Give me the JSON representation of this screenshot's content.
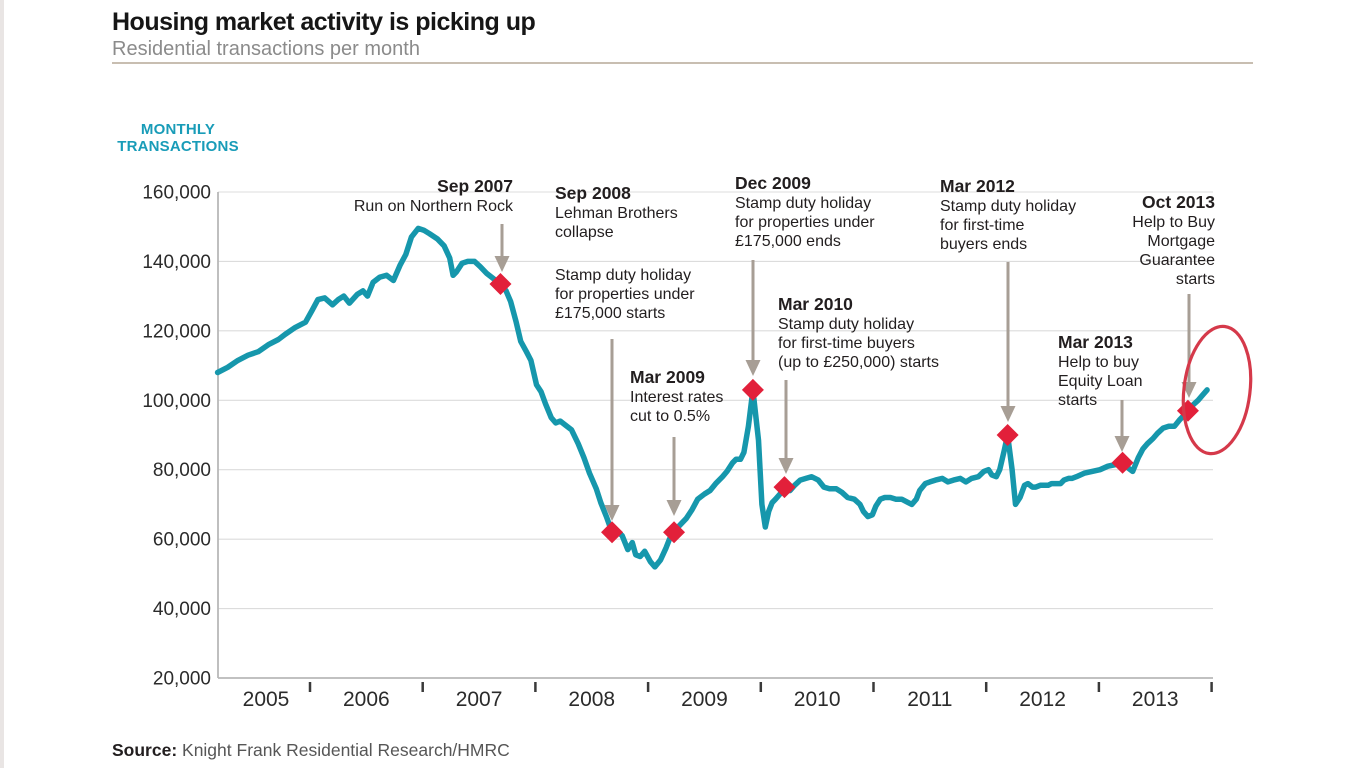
{
  "header": {
    "title": "Housing market activity is picking up",
    "subtitle": "Residential transactions per month"
  },
  "axis_label": {
    "line1": "MONTHLY",
    "line2": "TRANSACTIONS"
  },
  "source": {
    "label": "Source:",
    "text": " Knight Frank Residential Research/HMRC"
  },
  "colors": {
    "line": "#1697AC",
    "marker": "#E2203A",
    "arrow": "#A79E95",
    "ellipse": "#D5394A",
    "accent_text": "#199CB8",
    "grid": "#DCDCDC",
    "axis": "#B8B8B8",
    "tick": "#3A3A3A",
    "title": "#161616",
    "subtitle": "#8B8B8B",
    "text": "#221E1F",
    "axis_text": "#2B2B2B",
    "divider": "#C8BEB1",
    "source_text": "#565656",
    "left_strip": "#E9E5E4"
  },
  "chart_data": {
    "type": "line",
    "title": "Housing market activity is picking up",
    "subtitle": "Residential transactions per month",
    "ylabel": "MONTHLY TRANSACTIONS",
    "ylim": [
      20000,
      160000
    ],
    "grid": true,
    "y_ticks": [
      {
        "value": 160000,
        "label": "160,000"
      },
      {
        "value": 140000,
        "label": "140,000"
      },
      {
        "value": 120000,
        "label": "120,000"
      },
      {
        "value": 100000,
        "label": "100,000"
      },
      {
        "value": 80000,
        "label": "80,000"
      },
      {
        "value": 60000,
        "label": "60,000"
      },
      {
        "value": 40000,
        "label": "40,000"
      },
      {
        "value": 20000,
        "label": "20,000"
      }
    ],
    "x_ticks": [
      "2005",
      "2006",
      "2007",
      "2008",
      "2009",
      "2010",
      "2011",
      "2012",
      "2013"
    ],
    "series": [
      {
        "name": "Residential transactions per month",
        "points": [
          [
            2005.18,
            108000
          ],
          [
            2005.27,
            109500
          ],
          [
            2005.36,
            111500
          ],
          [
            2005.45,
            113000
          ],
          [
            2005.54,
            114000
          ],
          [
            2005.63,
            116000
          ],
          [
            2005.72,
            117500
          ],
          [
            2005.78,
            119000
          ],
          [
            2005.87,
            121000
          ],
          [
            2005.96,
            122500
          ],
          [
            2006.02,
            126000
          ],
          [
            2006.07,
            129000
          ],
          [
            2006.13,
            129500
          ],
          [
            2006.2,
            127500
          ],
          [
            2006.25,
            129000
          ],
          [
            2006.3,
            130000
          ],
          [
            2006.35,
            128000
          ],
          [
            2006.42,
            130500
          ],
          [
            2006.47,
            131500
          ],
          [
            2006.51,
            130000
          ],
          [
            2006.56,
            134000
          ],
          [
            2006.62,
            135500
          ],
          [
            2006.68,
            136000
          ],
          [
            2006.74,
            134500
          ],
          [
            2006.8,
            139000
          ],
          [
            2006.85,
            142000
          ],
          [
            2006.9,
            147000
          ],
          [
            2006.96,
            149500
          ],
          [
            2007.01,
            149000
          ],
          [
            2007.06,
            148000
          ],
          [
            2007.13,
            146500
          ],
          [
            2007.19,
            144500
          ],
          [
            2007.24,
            141000
          ],
          [
            2007.27,
            136000
          ],
          [
            2007.3,
            137000
          ],
          [
            2007.35,
            139500
          ],
          [
            2007.4,
            140000
          ],
          [
            2007.46,
            140000
          ],
          [
            2007.51,
            138500
          ],
          [
            2007.57,
            136500
          ],
          [
            2007.63,
            135000
          ],
          [
            2007.69,
            133500
          ],
          [
            2007.74,
            131500
          ],
          [
            2007.78,
            128500
          ],
          [
            2007.83,
            122500
          ],
          [
            2007.87,
            117000
          ],
          [
            2007.92,
            114000
          ],
          [
            2007.96,
            111500
          ],
          [
            2008.01,
            104500
          ],
          [
            2008.05,
            102500
          ],
          [
            2008.09,
            99000
          ],
          [
            2008.14,
            95000
          ],
          [
            2008.18,
            93500
          ],
          [
            2008.22,
            94000
          ],
          [
            2008.26,
            93000
          ],
          [
            2008.32,
            91500
          ],
          [
            2008.38,
            87500
          ],
          [
            2008.43,
            83500
          ],
          [
            2008.48,
            79000
          ],
          [
            2008.54,
            74500
          ],
          [
            2008.58,
            70500
          ],
          [
            2008.63,
            66500
          ],
          [
            2008.68,
            62000
          ],
          [
            2008.72,
            62500
          ],
          [
            2008.77,
            61000
          ],
          [
            2008.82,
            57000
          ],
          [
            2008.86,
            59000
          ],
          [
            2008.89,
            55500
          ],
          [
            2008.93,
            55000
          ],
          [
            2008.97,
            56500
          ],
          [
            2009.02,
            53500
          ],
          [
            2009.06,
            52000
          ],
          [
            2009.11,
            54000
          ],
          [
            2009.16,
            57500
          ],
          [
            2009.19,
            60000
          ],
          [
            2009.23,
            62000
          ],
          [
            2009.28,
            64000
          ],
          [
            2009.34,
            66000
          ],
          [
            2009.39,
            68500
          ],
          [
            2009.44,
            71500
          ],
          [
            2009.5,
            73000
          ],
          [
            2009.55,
            74000
          ],
          [
            2009.6,
            76000
          ],
          [
            2009.66,
            78000
          ],
          [
            2009.7,
            79500
          ],
          [
            2009.75,
            82000
          ],
          [
            2009.78,
            83000
          ],
          [
            2009.82,
            83000
          ],
          [
            2009.85,
            85000
          ],
          [
            2009.89,
            92500
          ],
          [
            2009.93,
            103000
          ],
          [
            2009.98,
            88500
          ],
          [
            2010.01,
            70000
          ],
          [
            2010.04,
            63500
          ],
          [
            2010.07,
            68000
          ],
          [
            2010.1,
            70500
          ],
          [
            2010.13,
            71500
          ],
          [
            2010.17,
            73000
          ],
          [
            2010.21,
            75000
          ],
          [
            2010.26,
            74000
          ],
          [
            2010.3,
            75500
          ],
          [
            2010.35,
            77000
          ],
          [
            2010.4,
            77500
          ],
          [
            2010.45,
            78000
          ],
          [
            2010.51,
            77000
          ],
          [
            2010.56,
            75000
          ],
          [
            2010.61,
            74500
          ],
          [
            2010.67,
            74500
          ],
          [
            2010.72,
            73500
          ],
          [
            2010.77,
            72000
          ],
          [
            2010.83,
            71500
          ],
          [
            2010.88,
            70000
          ],
          [
            2010.91,
            68000
          ],
          [
            2010.95,
            66500
          ],
          [
            2010.99,
            67000
          ],
          [
            2011.02,
            69500
          ],
          [
            2011.06,
            71500
          ],
          [
            2011.1,
            72000
          ],
          [
            2011.15,
            72000
          ],
          [
            2011.2,
            71500
          ],
          [
            2011.25,
            71500
          ],
          [
            2011.31,
            70500
          ],
          [
            2011.34,
            70000
          ],
          [
            2011.38,
            71500
          ],
          [
            2011.41,
            74000
          ],
          [
            2011.46,
            76000
          ],
          [
            2011.5,
            76500
          ],
          [
            2011.55,
            77000
          ],
          [
            2011.61,
            77500
          ],
          [
            2011.66,
            76500
          ],
          [
            2011.71,
            77000
          ],
          [
            2011.77,
            77500
          ],
          [
            2011.82,
            76500
          ],
          [
            2011.87,
            77500
          ],
          [
            2011.93,
            78000
          ],
          [
            2011.98,
            79500
          ],
          [
            2012.02,
            80000
          ],
          [
            2012.05,
            78500
          ],
          [
            2012.09,
            78000
          ],
          [
            2012.12,
            80000
          ],
          [
            2012.16,
            85500
          ],
          [
            2012.19,
            90000
          ],
          [
            2012.23,
            80000
          ],
          [
            2012.26,
            70000
          ],
          [
            2012.3,
            72000
          ],
          [
            2012.34,
            75500
          ],
          [
            2012.37,
            76000
          ],
          [
            2012.41,
            75000
          ],
          [
            2012.44,
            75000
          ],
          [
            2012.48,
            75500
          ],
          [
            2012.51,
            75500
          ],
          [
            2012.55,
            75500
          ],
          [
            2012.58,
            76000
          ],
          [
            2012.62,
            76000
          ],
          [
            2012.66,
            76000
          ],
          [
            2012.69,
            77000
          ],
          [
            2012.73,
            77500
          ],
          [
            2012.76,
            77500
          ],
          [
            2012.8,
            78000
          ],
          [
            2012.87,
            79000
          ],
          [
            2012.94,
            79500
          ],
          [
            2013.01,
            80000
          ],
          [
            2013.08,
            81000
          ],
          [
            2013.15,
            81500
          ],
          [
            2013.21,
            82000
          ],
          [
            2013.26,
            80500
          ],
          [
            2013.3,
            79500
          ],
          [
            2013.35,
            83500
          ],
          [
            2013.39,
            86000
          ],
          [
            2013.43,
            87500
          ],
          [
            2013.48,
            89000
          ],
          [
            2013.52,
            90500
          ],
          [
            2013.57,
            92000
          ],
          [
            2013.62,
            92500
          ],
          [
            2013.67,
            92500
          ],
          [
            2013.72,
            94500
          ],
          [
            2013.75,
            95500
          ],
          [
            2013.79,
            97000
          ],
          [
            2013.83,
            98500
          ],
          [
            2013.88,
            100000
          ],
          [
            2013.92,
            101500
          ],
          [
            2013.96,
            103000
          ]
        ]
      }
    ],
    "events": [
      {
        "id": "sep2007",
        "date": "Sep 2007",
        "year": 2007.69,
        "value": 133500,
        "lines": [
          "Run on Northern Rock"
        ]
      },
      {
        "id": "sep2008",
        "date": "Sep 2008",
        "year": 2008.68,
        "value": 62000,
        "lines": [
          "Lehman Brothers",
          "collapse"
        ],
        "lines2": [
          "Stamp duty holiday",
          "for properties under",
          "£175,000 starts"
        ]
      },
      {
        "id": "mar2009",
        "date": "Mar 2009",
        "year": 2009.23,
        "value": 62000,
        "lines": [
          "Interest rates",
          "cut to 0.5%"
        ]
      },
      {
        "id": "dec2009",
        "date": "Dec 2009",
        "year": 2009.93,
        "value": 103000,
        "lines": [
          "Stamp duty holiday",
          "for properties under",
          "£175,000 ends"
        ]
      },
      {
        "id": "mar2010",
        "date": "Mar 2010",
        "year": 2010.21,
        "value": 75000,
        "lines": [
          "Stamp duty holiday",
          "for first-time buyers",
          "(up to £250,000) starts"
        ]
      },
      {
        "id": "mar2012",
        "date": "Mar 2012",
        "year": 2012.19,
        "value": 90000,
        "lines": [
          "Stamp duty holiday",
          "for first-time",
          "buyers ends"
        ]
      },
      {
        "id": "mar2013",
        "date": "Mar 2013",
        "year": 2013.21,
        "value": 82000,
        "lines": [
          "Help to buy",
          "Equity Loan",
          "starts"
        ]
      },
      {
        "id": "oct2013",
        "date": "Oct 2013",
        "year": 2013.79,
        "value": 97000,
        "lines": [
          "Help to Buy",
          "Mortgage",
          "Guarantee",
          "starts"
        ]
      }
    ],
    "highlight_ellipse": true
  }
}
